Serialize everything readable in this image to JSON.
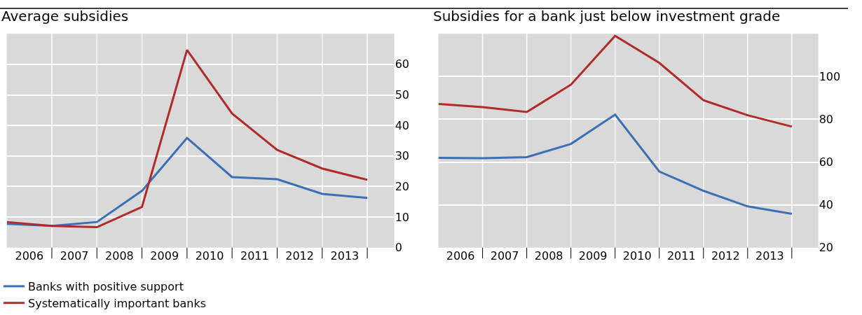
{
  "chart_data": [
    {
      "type": "line",
      "title": "Average subsidies",
      "x": [
        2006,
        2007,
        2008,
        2009,
        2010,
        2011,
        2012,
        2013,
        2014
      ],
      "series": [
        {
          "name": "Banks with positive support",
          "color": "#3b6fb6",
          "values": [
            7.8,
            7.1,
            8.4,
            18.6,
            35.9,
            23.1,
            22.4,
            17.6,
            16.3
          ]
        },
        {
          "color": "#b22b2b",
          "values": [
            8.4,
            7.1,
            6.7,
            13.3,
            64.7,
            43.9,
            32,
            25.9,
            22.2
          ]
        }
      ],
      "xlim": [
        2006,
        2014.6
      ],
      "xticks": [
        {
          "value": 2006.5,
          "label": "2006"
        },
        {
          "value": 2007.5,
          "label": "2007"
        },
        {
          "value": 2008.5,
          "label": "2008"
        },
        {
          "value": 2009.5,
          "label": "2009"
        },
        {
          "value": 2010.5,
          "label": "2010"
        },
        {
          "value": 2011.5,
          "label": "2011"
        },
        {
          "value": 2012.5,
          "label": "2012"
        },
        {
          "value": 2013.5,
          "label": "2013"
        }
      ],
      "ylim": [
        0,
        70
      ],
      "yticks": [
        0,
        10,
        20,
        30,
        40,
        50,
        60
      ],
      "grid": true,
      "legend": "bottom"
    },
    {
      "type": "line",
      "title": "Subsidies for a bank just below investment grade",
      "x": [
        2006,
        2007,
        2008,
        2009,
        2010,
        2011,
        2012,
        2013,
        2014
      ],
      "series": [
        {
          "color": "#3b6fb6",
          "values": [
            62,
            61.8,
            62.3,
            68.5,
            82.2,
            55.6,
            46.6,
            39.3,
            35.8
          ]
        },
        {
          "name": "Systematically important banks",
          "color": "#b22b2b",
          "values": [
            87.2,
            85.7,
            83.4,
            96.2,
            119,
            106.4,
            88.9,
            81.9,
            76.6
          ]
        }
      ],
      "xlim": [
        2006,
        2014.6
      ],
      "xticks": [
        {
          "value": 2006.5,
          "label": "2006"
        },
        {
          "value": 2007.5,
          "label": "2007"
        },
        {
          "value": 2008.5,
          "label": "2008"
        },
        {
          "value": 2009.5,
          "label": "2009"
        },
        {
          "value": 2010.5,
          "label": "2010"
        },
        {
          "value": 2011.5,
          "label": "2011"
        },
        {
          "value": 2012.5,
          "label": "2012"
        },
        {
          "value": 2013.5,
          "label": "2013"
        }
      ],
      "ylim": [
        20,
        120
      ],
      "yticks": [
        20,
        40,
        60,
        80,
        100
      ],
      "grid": true,
      "legend": "bottom"
    }
  ]
}
